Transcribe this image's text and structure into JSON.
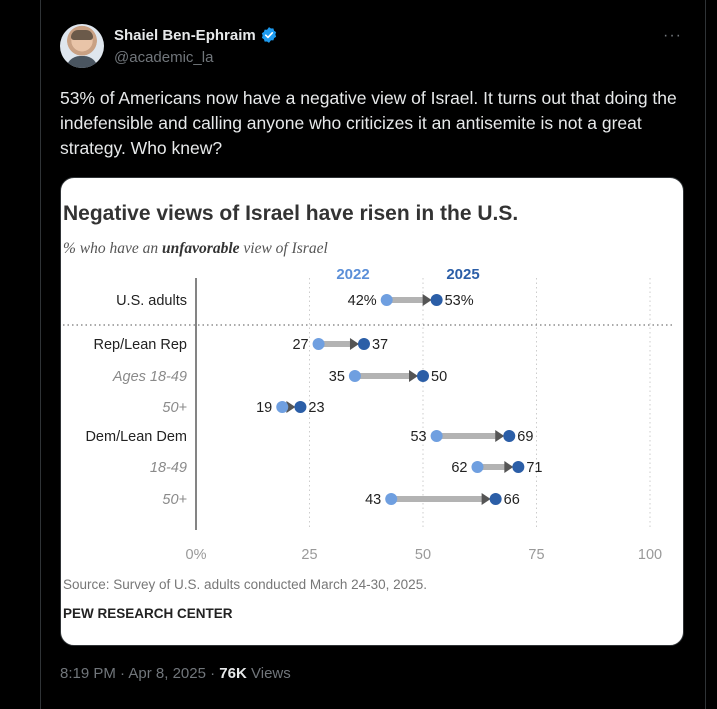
{
  "author": {
    "name": "Shaiel Ben-Ephraim",
    "handle": "@academic_la",
    "verified_icon": "verified-badge-icon",
    "verified_color": "#1d9bf0"
  },
  "menu": {
    "icon": "more-icon",
    "label": "···"
  },
  "tweet": {
    "text": "53% of Americans now have a negative view of Israel. It turns out that doing the indefensible and calling anyone who criticizes it an antisemite is not a great strategy. Who knew?"
  },
  "meta": {
    "time": "8:19 PM",
    "sep1": " · ",
    "date": "Apr 8, 2025",
    "sep2": " · ",
    "views_count": "76K",
    "views_label": "Views"
  },
  "colors": {
    "light_dot": "#6f9fe0",
    "dark_dot": "#2b5ea7",
    "arrow": "#b3b3b3",
    "year_light": "#5b8fd8",
    "year_dark": "#2b5ea7"
  },
  "chart_data": {
    "type": "dumbbell",
    "title": "Negative views of Israel have risen in the U.S.",
    "subtitle_parts": [
      "% who have an ",
      "unfavorable",
      " view of Israel"
    ],
    "series": [
      {
        "name": "2022"
      },
      {
        "name": "2025"
      }
    ],
    "rows": [
      {
        "label": "U.S. adults",
        "italic": false,
        "v2022": 42,
        "v2025": 53,
        "label2022": "42%",
        "label2025": "53%"
      },
      {
        "label": "Rep/Lean Rep",
        "italic": false,
        "v2022": 27,
        "v2025": 37,
        "label2022": "27",
        "label2025": "37"
      },
      {
        "label": "Ages 18-49",
        "italic": true,
        "v2022": 35,
        "v2025": 50,
        "label2022": "35",
        "label2025": "50"
      },
      {
        "label": "50+",
        "italic": true,
        "v2022": 19,
        "v2025": 23,
        "label2022": "19",
        "label2025": "23"
      },
      {
        "label": "Dem/Lean Dem",
        "italic": false,
        "v2022": 53,
        "v2025": 69,
        "label2022": "53",
        "label2025": "69"
      },
      {
        "label": "18-49",
        "italic": true,
        "v2022": 62,
        "v2025": 71,
        "label2022": "62",
        "label2025": "71"
      },
      {
        "label": "50+",
        "italic": true,
        "v2022": 43,
        "v2025": 66,
        "label2022": "43",
        "label2025": "66"
      }
    ],
    "x_ticks": [
      {
        "value": 0,
        "label": "0%"
      },
      {
        "value": 25,
        "label": "25"
      },
      {
        "value": 50,
        "label": "50"
      },
      {
        "value": 75,
        "label": "75"
      },
      {
        "value": 100,
        "label": "100"
      }
    ],
    "xlim": [
      0,
      100
    ],
    "source": "Source: Survey of U.S. adults conducted March 24-30, 2025.",
    "footer": "PEW RESEARCH CENTER"
  }
}
